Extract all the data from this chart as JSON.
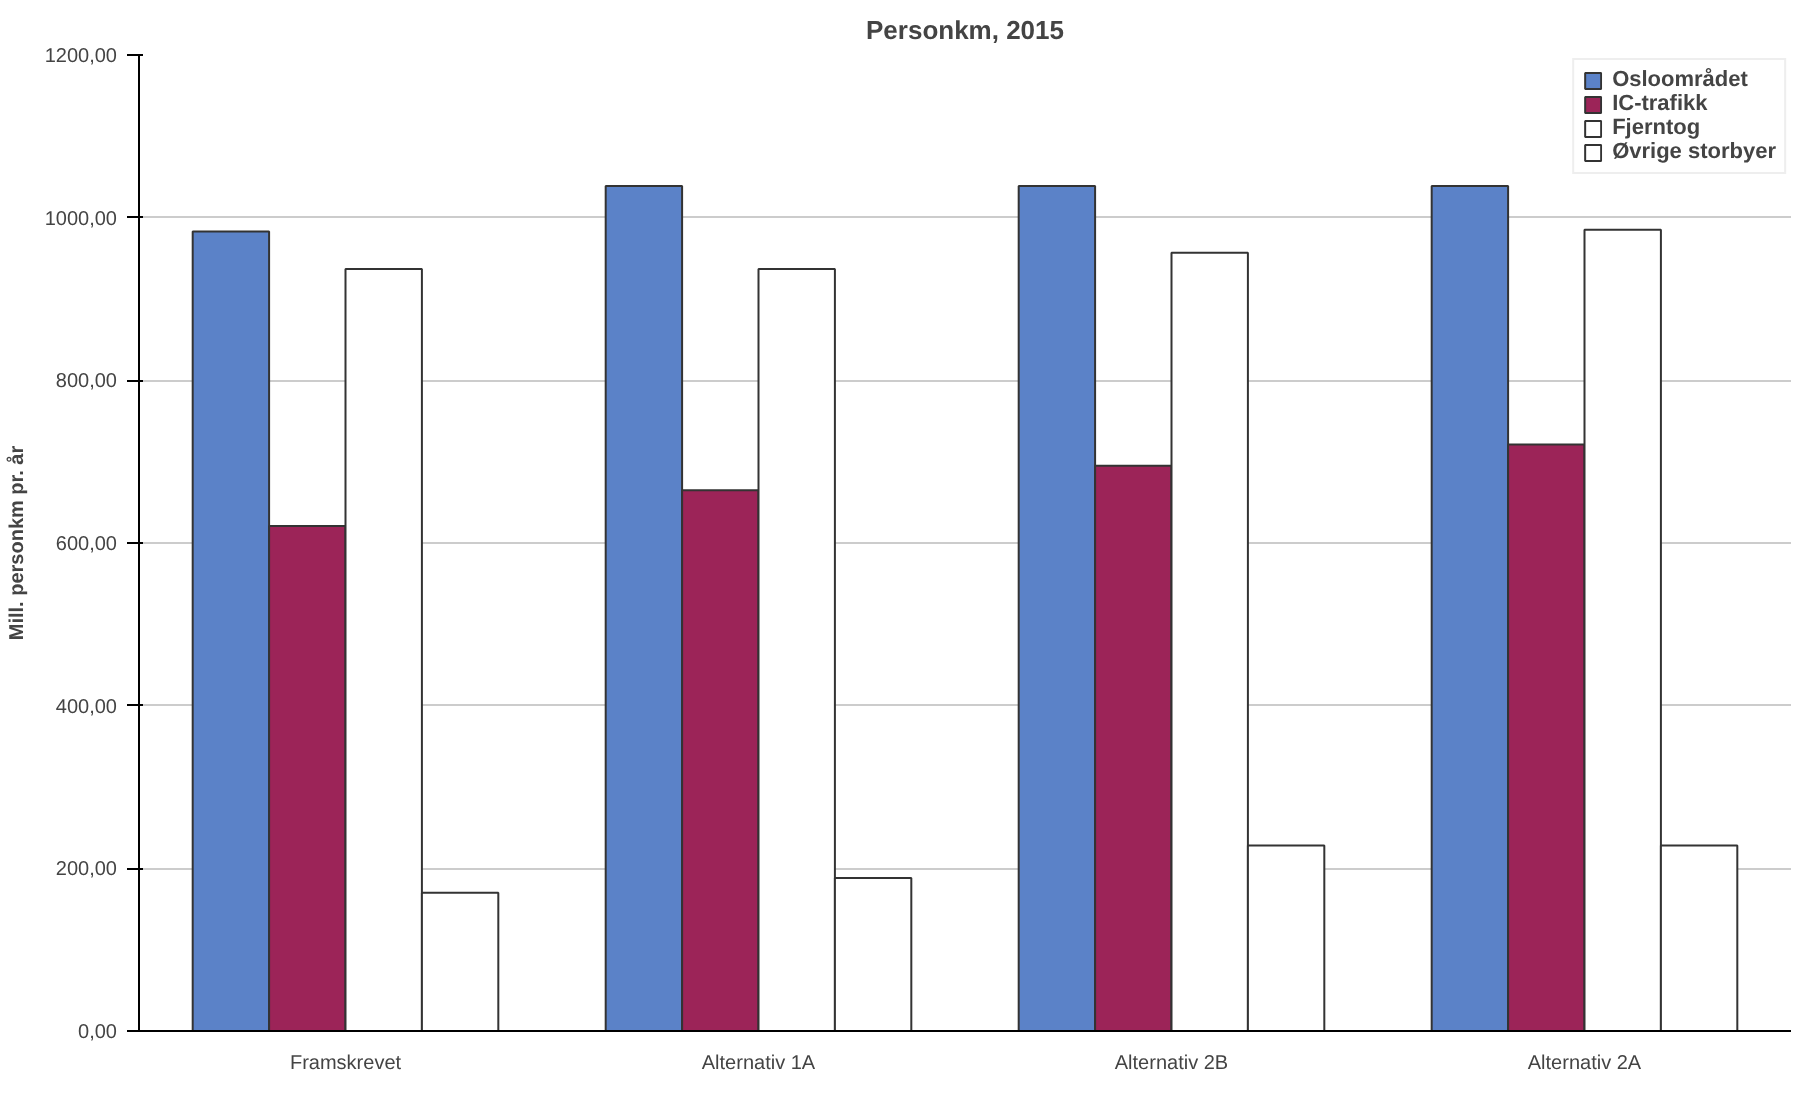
{
  "chart_data": {
    "type": "bar",
    "title": "Personkm, 2015",
    "ylabel": "Mill. personkm pr. år",
    "categories": [
      "Framskrevet",
      "Alternativ 1A",
      "Alternativ 2B",
      "Alternativ 2A"
    ],
    "series": [
      {
        "name": "Osloområdet",
        "color": "#5b82c8",
        "values": [
          983,
          1039,
          1039,
          1039
        ]
      },
      {
        "name": "IC-trafikk",
        "color": "#9c2458",
        "values": [
          621,
          665,
          695,
          721
        ]
      },
      {
        "name": "Fjerntog",
        "color": "#ffffff",
        "values": [
          937,
          937,
          957,
          985
        ]
      },
      {
        "name": "Øvrige storbyer",
        "color": "#ffffff",
        "values": [
          170,
          188,
          228,
          228
        ]
      }
    ],
    "ylim": [
      0,
      1200
    ],
    "yticks": [
      {
        "value": 0,
        "label": "0,00"
      },
      {
        "value": 200,
        "label": "200,00"
      },
      {
        "value": 400,
        "label": "400,00"
      },
      {
        "value": 600,
        "label": "600,00"
      },
      {
        "value": 800,
        "label": "800,00"
      },
      {
        "value": 1000,
        "label": "1000,00"
      },
      {
        "value": 1200,
        "label": "1200,00"
      }
    ],
    "grid": "y",
    "legend": "top right"
  }
}
